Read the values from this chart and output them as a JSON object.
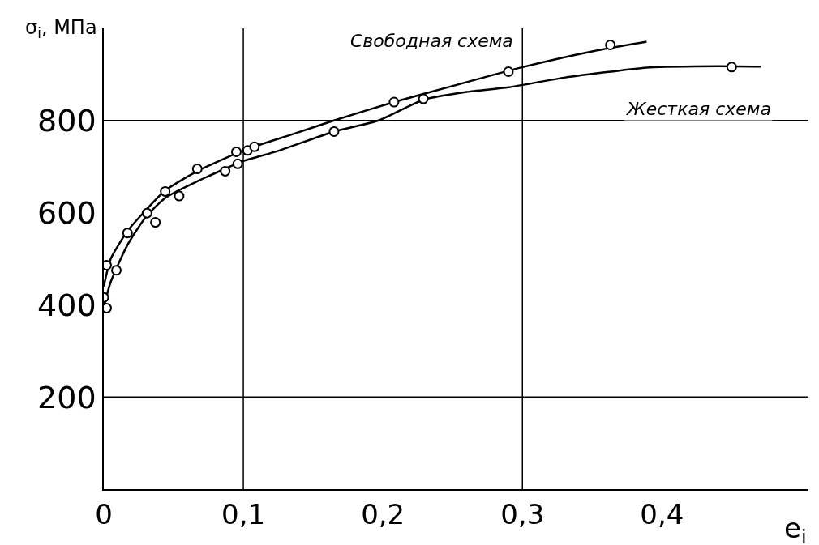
{
  "chart_data": {
    "type": "line",
    "xlabel": "e$_{i}$",
    "ylabel": "σ$_{i}$, МПа",
    "xlim": [
      0,
      0.505
    ],
    "ylim": [
      0,
      1000
    ],
    "xticks": [
      {
        "value": 0,
        "label": "0"
      },
      {
        "value": 0.1,
        "label": "0,1"
      },
      {
        "value": 0.2,
        "label": "0,2"
      },
      {
        "value": 0.3,
        "label": "0,3"
      },
      {
        "value": 0.4,
        "label": "0,4"
      }
    ],
    "yticks": [
      200,
      400,
      600,
      800
    ],
    "grid": false,
    "legend": false,
    "ref_lines": [
      {
        "axis": "y",
        "value": 200
      },
      {
        "axis": "y",
        "value": 800
      },
      {
        "axis": "x",
        "value": 0.1
      },
      {
        "axis": "x",
        "value": 0.3
      }
    ],
    "series": [
      {
        "name": "Свободная схема",
        "color": "#000000",
        "marker": "none",
        "line_style": "solid",
        "x": [
          0,
          0.005,
          0.017,
          0.03,
          0.044,
          0.067,
          0.1,
          0.135,
          0.165,
          0.208,
          0.25,
          0.299,
          0.35,
          0.389
        ],
        "values": [
          440,
          500,
          560,
          605,
          648,
          690,
          735,
          770,
          800,
          840,
          875,
          915,
          950,
          971
        ]
      },
      {
        "name": "Жесткая схема",
        "color": "#000000",
        "marker": "none",
        "line_style": "solid",
        "x": [
          0,
          0.005,
          0.017,
          0.03,
          0.044,
          0.067,
          0.1,
          0.124,
          0.165,
          0.197,
          0.229,
          0.26,
          0.29,
          0.33,
          0.391,
          0.44,
          0.471
        ],
        "values": [
          395,
          450,
          530,
          590,
          632,
          668,
          712,
          733,
          776,
          800,
          845,
          862,
          872,
          893,
          915,
          918,
          917
        ]
      },
      {
        "type": "scatter",
        "color": "#000000",
        "marker": "circle",
        "x": [
          0,
          0.002,
          0.002,
          0.009,
          0.017,
          0.031,
          0.037,
          0.044,
          0.054,
          0.067,
          0.087,
          0.095,
          0.096,
          0.103,
          0.108,
          0.165,
          0.208,
          0.229,
          0.29,
          0.363,
          0.45
        ],
        "values": [
          416,
          393,
          486,
          475,
          556,
          599,
          579,
          646,
          636,
          695,
          690,
          732,
          706,
          735,
          743,
          776,
          840,
          847,
          906,
          964,
          916
        ]
      }
    ]
  }
}
